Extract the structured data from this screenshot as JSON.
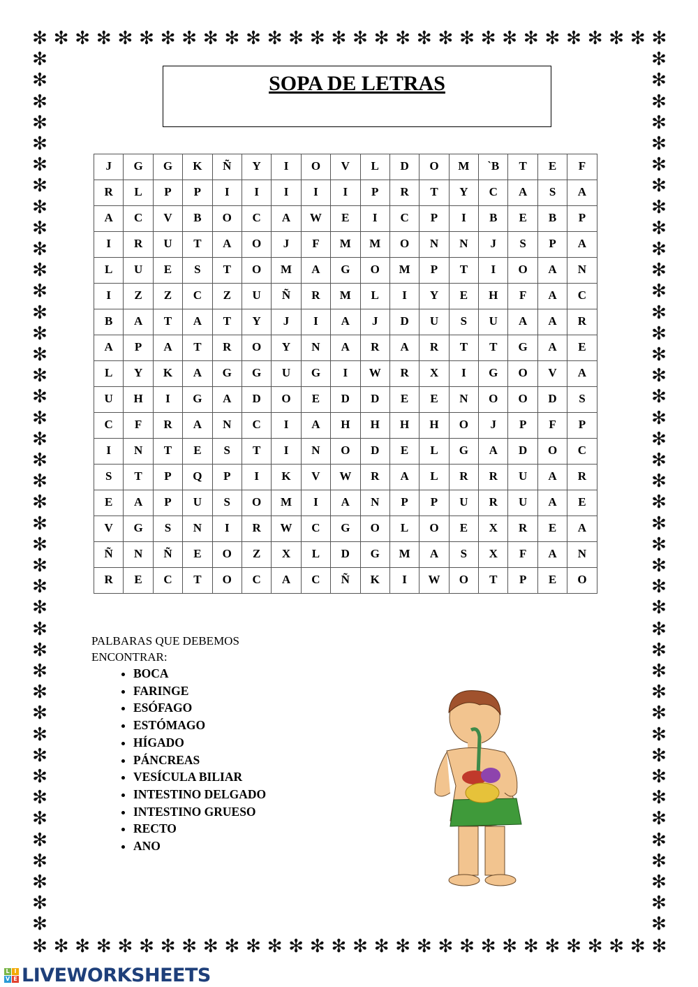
{
  "title": "SOPA DE LETRAS",
  "ornament_glyph": "✻",
  "grid": [
    [
      "J",
      "G",
      "G",
      "K",
      "Ñ",
      "Y",
      "I",
      "O",
      "V",
      "L",
      "D",
      "O",
      "M",
      "`B",
      "T",
      "E",
      "F"
    ],
    [
      "R",
      "L",
      "P",
      "P",
      "I",
      "I",
      "I",
      "I",
      "I",
      "P",
      "R",
      "T",
      "Y",
      "C",
      "A",
      "S",
      "A"
    ],
    [
      "A",
      "C",
      "V",
      "B",
      "O",
      "C",
      "A",
      "W",
      "E",
      "I",
      "C",
      "P",
      "I",
      "B",
      "E",
      "B",
      "P"
    ],
    [
      "I",
      "R",
      "U",
      "T",
      "A",
      "O",
      "J",
      "F",
      "M",
      "M",
      "O",
      "N",
      "N",
      "J",
      "S",
      "P",
      "A"
    ],
    [
      "L",
      "U",
      "E",
      "S",
      "T",
      "O",
      "M",
      "A",
      "G",
      "O",
      "M",
      "P",
      "T",
      "I",
      "O",
      "A",
      "N"
    ],
    [
      "I",
      "Z",
      "Z",
      "C",
      "Z",
      "U",
      "Ñ",
      "R",
      "M",
      "L",
      "I",
      "Y",
      "E",
      "H",
      "F",
      "A",
      "C"
    ],
    [
      "B",
      "A",
      "T",
      "A",
      "T",
      "Y",
      "J",
      "I",
      "A",
      "J",
      "D",
      "U",
      "S",
      "U",
      "A",
      "A",
      "R"
    ],
    [
      "A",
      "P",
      "A",
      "T",
      "R",
      "O",
      "Y",
      "N",
      "A",
      "R",
      "A",
      "R",
      "T",
      "T",
      "G",
      "A",
      "E"
    ],
    [
      "L",
      "Y",
      "K",
      "A",
      "G",
      "G",
      "U",
      "G",
      "I",
      "W",
      "R",
      "X",
      "I",
      "G",
      "O",
      "V",
      "A"
    ],
    [
      "U",
      "H",
      "I",
      "G",
      "A",
      "D",
      "O",
      "E",
      "D",
      "D",
      "E",
      "E",
      "N",
      "O",
      "O",
      "D",
      "S"
    ],
    [
      "C",
      "F",
      "R",
      "A",
      "N",
      "C",
      "I",
      "A",
      "H",
      "H",
      "H",
      "H",
      "O",
      "J",
      "P",
      "F",
      "P"
    ],
    [
      "I",
      "N",
      "T",
      "E",
      "S",
      "T",
      "I",
      "N",
      "O",
      "D",
      "E",
      "L",
      "G",
      "A",
      "D",
      "O",
      "C"
    ],
    [
      "S",
      "T",
      "P",
      "Q",
      "P",
      "I",
      "K",
      "V",
      "W",
      "R",
      "A",
      "L",
      "R",
      "R",
      "U",
      "A",
      "R"
    ],
    [
      "E",
      "A",
      "P",
      "U",
      "S",
      "O",
      "M",
      "I",
      "A",
      "N",
      "P",
      "P",
      "U",
      "R",
      "U",
      "A",
      "E"
    ],
    [
      "V",
      "G",
      "S",
      "N",
      "I",
      "R",
      "W",
      "C",
      "G",
      "O",
      "L",
      "O",
      "E",
      "X",
      "R",
      "E",
      "A"
    ],
    [
      "Ñ",
      "N",
      "Ñ",
      "E",
      "O",
      "Z",
      "X",
      "L",
      "D",
      "G",
      "M",
      "A",
      "S",
      "X",
      "F",
      "A",
      "N"
    ],
    [
      "R",
      "E",
      "C",
      "T",
      "O",
      "C",
      "A",
      "C",
      "Ñ",
      "K",
      "I",
      "W",
      "O",
      "T",
      "P",
      "E",
      "O"
    ]
  ],
  "intro_line1": "PALBARAS QUE DEBEMOS",
  "intro_line2": "ENCONTRAR:",
  "words": [
    "BOCA",
    "FARINGE",
    "ESÓFAGO",
    "ESTÓMAGO",
    "HÍGADO",
    "PÁNCREAS",
    "VESÍCULA BILIAR",
    "INTESTINO DELGADO",
    "INTESTINO GRUESO",
    "RECTO",
    "ANO"
  ],
  "logo": {
    "text": "LIVEWORKSHEETS",
    "mark": [
      "L",
      "I",
      "V",
      "E"
    ],
    "mark_colors": [
      "#7ab648",
      "#f2a900",
      "#2a9ad6",
      "#e2412f"
    ],
    "text_color": "#1e3f7a"
  }
}
